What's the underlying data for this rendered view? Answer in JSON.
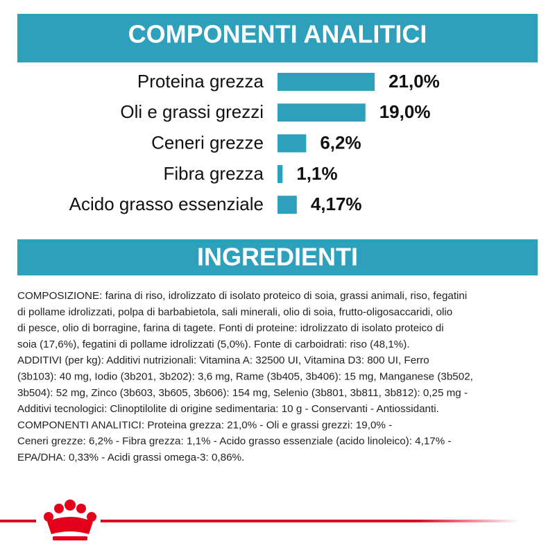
{
  "chart_data": {
    "type": "bar",
    "orientation": "horizontal",
    "title": "COMPONENTI ANALITICI",
    "categories": [
      "Proteina grezza",
      "Oli e grassi grezzi",
      "Ceneri grezze",
      "Fibra grezza",
      "Acido grasso essenziale"
    ],
    "values": [
      21.0,
      19.0,
      6.2,
      1.1,
      4.17
    ],
    "value_labels": [
      "21,0%",
      "19,0%",
      "6,2%",
      "1,1%",
      "4,17%"
    ],
    "color": "#2fa0bb"
  },
  "ingredients": {
    "title": "INGREDIENTI",
    "lines": [
      "COMPOSIZIONE: farina di riso, idrolizzato di isolato proteico di soia, grassi animali, riso, fegatini",
      "di pollame idrolizzati, polpa di barbabietola, sali minerali, olio di soia, frutto-oligosaccaridi, olio",
      "di pesce, olio di borragine, farina di tagete. Fonti di proteine: idrolizzato di isolato proteico di",
      "soia (17,6%), fegatini di pollame idrolizzati (5,0%). Fonte di carboidrati: riso (48,1%).",
      "ADDITIVI (per kg): Additivi nutrizionali: Vitamina A: 32500 UI, Vitamina D3: 800 UI, Ferro",
      "(3b103): 40 mg, Iodio (3b201, 3b202): 3,6 mg, Rame (3b405, 3b406): 15 mg, Manganese (3b502,",
      "3b504): 52 mg, Zinco (3b603, 3b605, 3b606): 154 mg, Selenio (3b801, 3b811, 3b812): 0,25 mg -",
      "Additivi tecnologici: Clinoptilolite di origine sedimentaria: 10 g - Conservanti - Antiossidanti.",
      "COMPONENTI ANALITICI: Proteina grezza: 21,0% - Oli e grassi grezzi: 19,0% -",
      "Ceneri grezze: 6,2% - Fibra grezza: 1,1% - Acido grasso essenziale (acido linoleico): 4,17% -",
      "EPA/DHA: 0,33% - Acidi grassi omega-3: 0,86%."
    ]
  }
}
